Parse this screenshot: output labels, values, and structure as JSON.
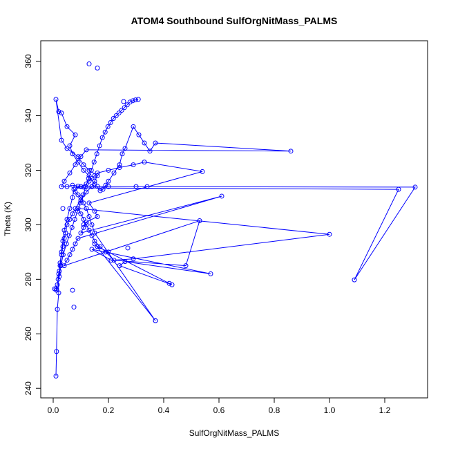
{
  "chart_data": {
    "type": "line",
    "title": "ATOM4 Southbound SulfOrgNitMass_PALMS",
    "xlabel": "SulfOrgNitMass_PALMS",
    "ylabel": "Theta (K)",
    "xlim": [
      -0.045,
      1.355
    ],
    "ylim": [
      236.5,
      367.5
    ],
    "x_ticks": [
      0.0,
      0.2,
      0.4,
      0.6,
      0.8,
      1.0,
      1.2
    ],
    "x_tick_labels": [
      "0.0",
      "0.2",
      "0.4",
      "0.6",
      "0.8",
      "1.0",
      "1.2"
    ],
    "y_ticks": [
      240,
      260,
      280,
      300,
      320,
      340,
      360
    ],
    "y_tick_labels": [
      "240",
      "260",
      "280",
      "300",
      "320",
      "340",
      "360"
    ],
    "grid": false,
    "legend": "none",
    "series_color": "#0000ff",
    "series": [
      {
        "x": [
          0.01,
          0.012,
          0.015,
          0.02,
          0.018,
          0.022,
          0.025,
          0.03,
          0.035,
          0.04,
          0.045,
          0.05,
          0.06,
          0.07,
          0.08,
          0.1,
          0.12,
          0.14,
          0.15,
          0.16,
          0.13,
          0.11,
          0.09,
          0.05,
          0.03,
          0.01,
          0.02,
          0.03,
          0.05,
          0.08,
          0.06,
          0.07,
          0.09,
          0.11,
          0.13,
          0.15,
          0.17,
          0.18,
          0.19,
          0.2,
          0.22,
          0.24,
          0.25,
          0.26,
          0.29,
          0.31,
          0.33,
          0.35,
          0.37,
          0.86,
          0.12,
          0.1,
          0.08,
          0.06,
          0.04,
          0.03,
          0.05,
          0.07,
          0.09,
          0.11,
          0.14,
          0.16,
          0.2,
          0.3,
          0.34,
          1.31,
          1.09,
          1.25,
          0.08,
          0.1,
          0.12,
          0.13,
          0.14,
          0.15,
          0.16,
          0.2,
          0.24,
          0.29,
          0.33,
          0.54,
          0.13,
          0.15,
          0.16,
          0.12,
          0.11,
          0.1,
          0.61,
          0.09,
          0.08,
          0.07,
          0.06,
          0.05,
          0.04,
          0.53,
          0.48,
          0.22,
          0.19,
          0.17,
          0.15,
          0.14,
          0.13,
          0.12,
          0.11,
          0.1,
          0.09,
          1.0,
          0.29,
          0.21,
          0.14,
          0.57,
          0.26,
          0.24,
          0.43,
          0.42,
          0.2,
          0.16,
          0.15,
          0.37,
          0.15,
          0.14,
          0.13,
          0.12,
          0.11,
          0.1,
          0.09,
          0.08,
          0.075,
          0.07,
          0.06,
          0.05,
          0.04,
          0.035,
          0.03,
          0.025,
          0.02,
          0.015,
          0.012,
          0.01,
          0.022,
          0.028,
          0.036,
          0.048,
          0.058,
          0.068,
          0.078,
          0.088,
          0.098,
          0.108,
          0.118,
          0.128,
          0.138,
          0.148,
          0.158,
          0.168,
          0.178,
          0.188,
          0.198,
          0.208,
          0.218,
          0.228,
          0.238,
          0.248,
          0.258,
          0.268,
          0.278,
          0.288,
          0.298,
          0.308
        ],
        "y": [
          244.5,
          253.5,
          269.0,
          275.0,
          280.0,
          283.0,
          285.0,
          289.0,
          292.0,
          295.0,
          297.0,
          300.0,
          302.0,
          304.0,
          306.0,
          309.0,
          312.0,
          314.0,
          316.0,
          318.0,
          320.0,
          322.0,
          325.0,
          328.0,
          331.0,
          346.0,
          341.5,
          341.0,
          336.0,
          333.0,
          329.0,
          326.0,
          323.0,
          320.0,
          318.0,
          315.0,
          312.5,
          313.0,
          314.5,
          316.0,
          319.0,
          322.0,
          326.0,
          328.0,
          336.0,
          333.0,
          330.0,
          327.0,
          330.0,
          327.0,
          327.5,
          325.0,
          322.0,
          319.0,
          316.0,
          314.0,
          314.0,
          314.5,
          314.2,
          313.8,
          314.0,
          314.1,
          314.0,
          314.0,
          314.0,
          313.8,
          279.8,
          313.0,
          313.5,
          314.0,
          315.0,
          316.0,
          317.0,
          318.0,
          319.0,
          320.0,
          321.0,
          322.0,
          323.0,
          319.5,
          308.0,
          305.0,
          303.0,
          301.0,
          299.0,
          297.0,
          310.5,
          295.0,
          293.0,
          291.0,
          289.0,
          287.0,
          285.0,
          301.5,
          285.0,
          287.0,
          290.0,
          292.0,
          294.0,
          296.0,
          298.0,
          300.0,
          302.0,
          304.0,
          306.0,
          296.5,
          287.5,
          287.0,
          291.0,
          282.0,
          286.5,
          285.0,
          278.0,
          278.5,
          290.0,
          292.0,
          293.0,
          264.8,
          297.0,
          300.0,
          303.0,
          306.0,
          308.0,
          310.0,
          311.0,
          312.0,
          313.0,
          310.0,
          306.0,
          302.0,
          298.0,
          294.0,
          290.0,
          286.0,
          282.0,
          278.0,
          276.0,
          276.5,
          281.0,
          285.0,
          289.0,
          293.0,
          296.0,
          299.0,
          302.0,
          305.0,
          308.0,
          311.0,
          314.0,
          317.0,
          320.0,
          323.0,
          326.0,
          329.0,
          332.0,
          334.0,
          336.0,
          337.5,
          339.0,
          340.0,
          341.0,
          342.0,
          343.0,
          344.0,
          345.0,
          345.5,
          345.8,
          346.0
        ]
      }
    ],
    "isolated_points": {
      "x": [
        0.13,
        0.16,
        0.255,
        0.075,
        0.005,
        0.035,
        0.07,
        0.11,
        0.27,
        0.37
      ],
      "y": [
        359.0,
        357.5,
        345.2,
        269.8,
        276.5,
        306.0,
        276.0,
        300.0,
        291.5,
        264.8
      ]
    }
  }
}
